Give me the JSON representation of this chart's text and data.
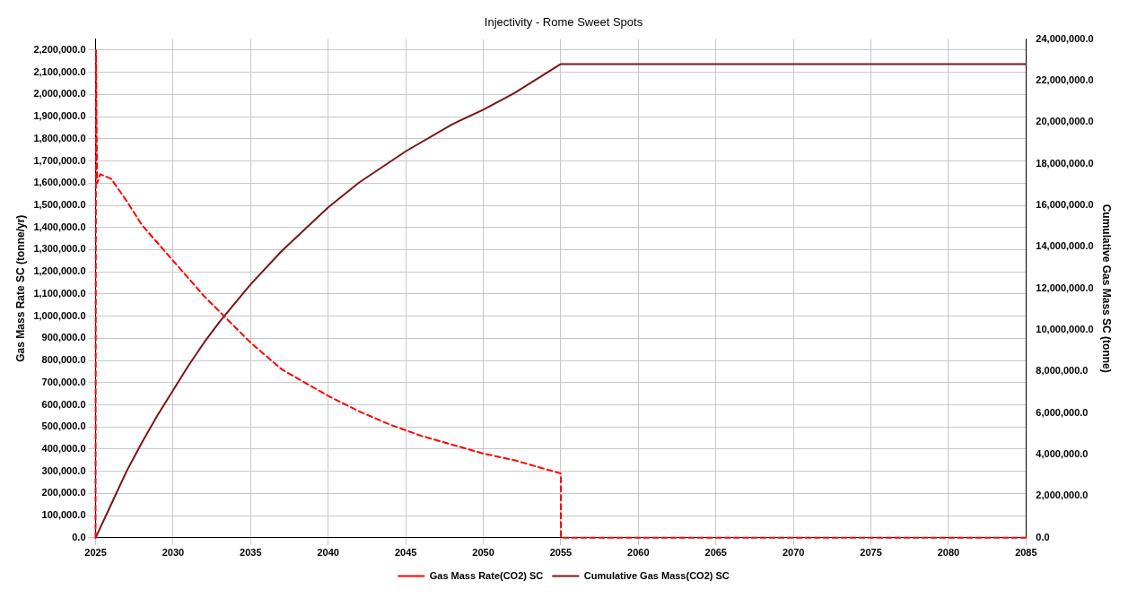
{
  "chart_data": {
    "type": "line",
    "title": "Injectivity - Rome Sweet Spots",
    "ylabel": "Gas Mass Rate SC (tonne/yr)",
    "y2label": "Cumulative Gas Mass SC (tonne)",
    "xlim": [
      2025,
      2085
    ],
    "xticks": [
      2025,
      2030,
      2035,
      2040,
      2045,
      2050,
      2055,
      2060,
      2065,
      2070,
      2075,
      2080,
      2085
    ],
    "ylim": [
      0,
      2250000
    ],
    "yticks": [
      {
        "value": 0,
        "label": "0.0"
      },
      {
        "value": 100000,
        "label": "100,000.0"
      },
      {
        "value": 200000,
        "label": "200,000.0"
      },
      {
        "value": 300000,
        "label": "300,000.0"
      },
      {
        "value": 400000,
        "label": "400,000.0"
      },
      {
        "value": 500000,
        "label": "500,000.0"
      },
      {
        "value": 600000,
        "label": "600,000.0"
      },
      {
        "value": 700000,
        "label": "700,000.0"
      },
      {
        "value": 800000,
        "label": "800,000.0"
      },
      {
        "value": 900000,
        "label": "900,000.0"
      },
      {
        "value": 1000000,
        "label": "1,000,000.0"
      },
      {
        "value": 1100000,
        "label": "1,100,000.0"
      },
      {
        "value": 1200000,
        "label": "1,200,000.0"
      },
      {
        "value": 1300000,
        "label": "1,300,000.0"
      },
      {
        "value": 1400000,
        "label": "1,400,000.0"
      },
      {
        "value": 1500000,
        "label": "1,500,000.0"
      },
      {
        "value": 1600000,
        "label": "1,600,000.0"
      },
      {
        "value": 1700000,
        "label": "1,700,000.0"
      },
      {
        "value": 1800000,
        "label": "1,800,000.0"
      },
      {
        "value": 1900000,
        "label": "1,900,000.0"
      },
      {
        "value": 2000000,
        "label": "2,000,000.0"
      },
      {
        "value": 2100000,
        "label": "2,100,000.0"
      },
      {
        "value": 2200000,
        "label": "2,200,000.0"
      }
    ],
    "y2lim": [
      0,
      24000000
    ],
    "y2ticks": [
      {
        "value": 0,
        "label": "0.0"
      },
      {
        "value": 2000000,
        "label": "2,000,000.0"
      },
      {
        "value": 4000000,
        "label": "4,000,000.0"
      },
      {
        "value": 6000000,
        "label": "6,000,000.0"
      },
      {
        "value": 8000000,
        "label": "8,000,000.0"
      },
      {
        "value": 10000000,
        "label": "10,000,000.0"
      },
      {
        "value": 12000000,
        "label": "12,000,000.0"
      },
      {
        "value": 14000000,
        "label": "14,000,000.0"
      },
      {
        "value": 16000000,
        "label": "16,000,000.0"
      },
      {
        "value": 18000000,
        "label": "18,000,000.0"
      },
      {
        "value": 20000000,
        "label": "20,000,000.0"
      },
      {
        "value": 22000000,
        "label": "22,000,000.0"
      },
      {
        "value": 24000000,
        "label": "24,000,000.0"
      }
    ],
    "grid": true,
    "legend": "bottom",
    "marker": "none",
    "series": [
      {
        "name": "Gas Mass Rate(CO2) SC",
        "color": "#ff0000",
        "line_style": "dashed",
        "x": [
          2025,
          2025.03,
          2025.06,
          2025.1,
          2025.3,
          2026,
          2027,
          2028,
          2029,
          2030,
          2031,
          2032,
          2033,
          2034,
          2035,
          2036,
          2037,
          2038,
          2039,
          2040,
          2042,
          2044,
          2046,
          2048,
          2050,
          2052,
          2054,
          2055,
          2055.01,
          2085
        ],
        "values": [
          0,
          2200000,
          1900000,
          1600000,
          1640000,
          1620000,
          1520000,
          1410000,
          1330000,
          1250000,
          1170000,
          1090000,
          1020000,
          950000,
          880000,
          820000,
          760000,
          720000,
          680000,
          640000,
          570000,
          510000,
          460000,
          420000,
          380000,
          350000,
          310000,
          290000,
          0,
          0
        ]
      },
      {
        "name": "Cumulative Gas Mass(CO2) SC",
        "color": "#7b1515",
        "line_style": "solid",
        "axis": "y2",
        "x": [
          2025,
          2026,
          2027,
          2028,
          2029,
          2030,
          2031,
          2032,
          2033,
          2034,
          2035,
          2037,
          2040,
          2042,
          2045,
          2048,
          2050,
          2052,
          2055,
          2085
        ],
        "values": [
          0,
          1600000,
          3200000,
          4600000,
          5900000,
          7100000,
          8300000,
          9400000,
          10400000,
          11300000,
          12200000,
          13800000,
          15900000,
          17100000,
          18600000,
          19900000,
          20600000,
          21400000,
          22800000,
          22800000
        ]
      }
    ]
  }
}
